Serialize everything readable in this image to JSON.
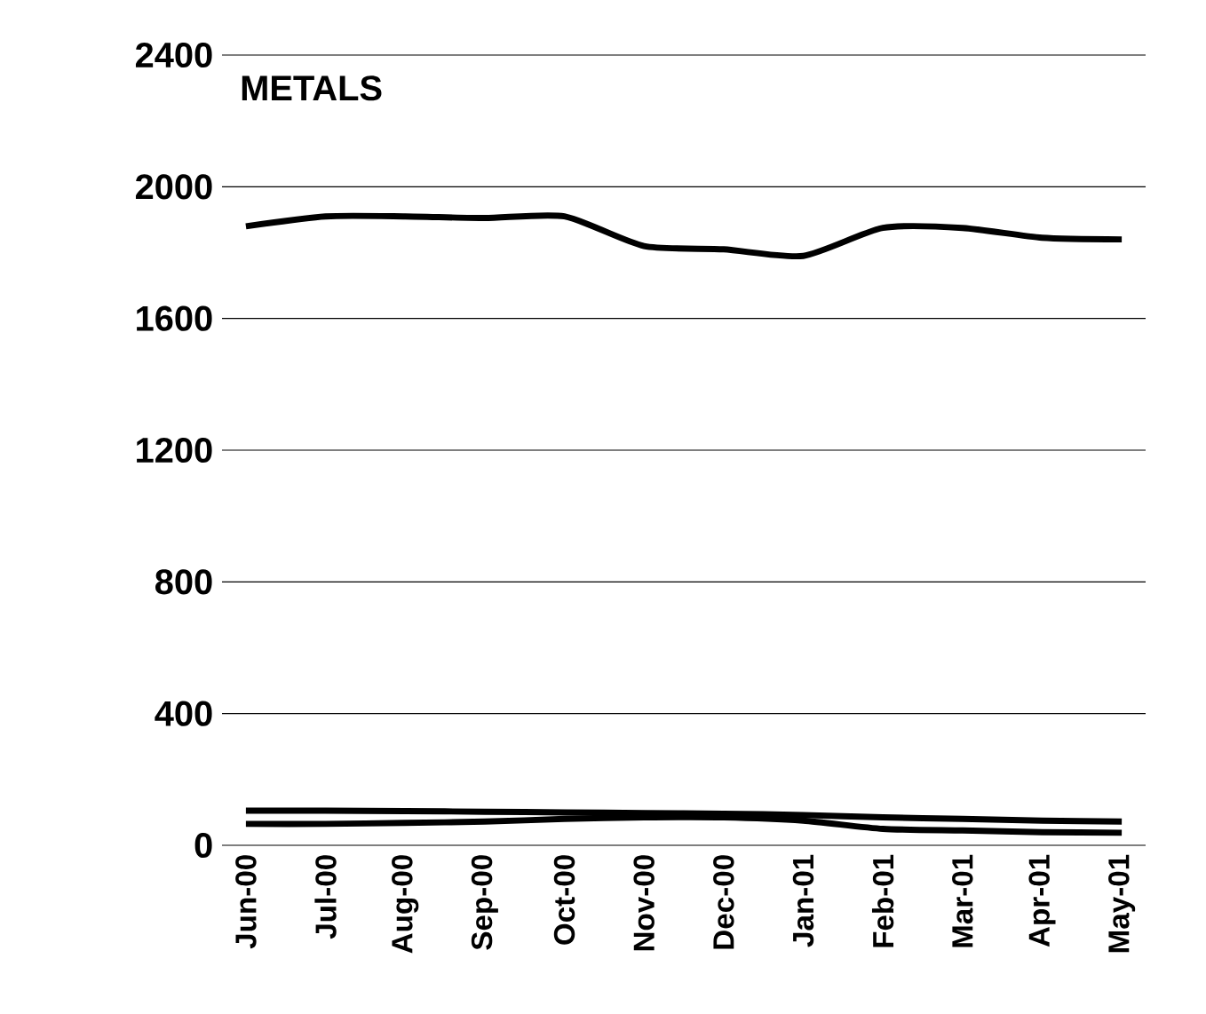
{
  "chart_data": {
    "type": "line",
    "title": "METALS",
    "categories": [
      "Jun-00",
      "Jul-00",
      "Aug-00",
      "Sep-00",
      "Oct-00",
      "Nov-00",
      "Dec-00",
      "Jan-01",
      "Feb-01",
      "Mar-01",
      "Apr-01",
      "May-01"
    ],
    "series": [
      {
        "color": "#000000",
        "values": [
          1880,
          1910,
          1910,
          1905,
          1910,
          1820,
          1810,
          1790,
          1875,
          1875,
          1845,
          1840
        ]
      },
      {
        "color": "#000000",
        "values": [
          105,
          105,
          104,
          102,
          100,
          98,
          96,
          92,
          85,
          80,
          75,
          72
        ]
      },
      {
        "color": "#000000",
        "values": [
          65,
          65,
          68,
          72,
          80,
          85,
          85,
          75,
          50,
          45,
          40,
          38
        ]
      }
    ],
    "ylim": [
      0,
      2400
    ],
    "yticks": [
      0,
      400,
      800,
      1200,
      1600,
      2000,
      2400
    ],
    "grid": "y",
    "marker": "none",
    "line_style": "solid"
  }
}
